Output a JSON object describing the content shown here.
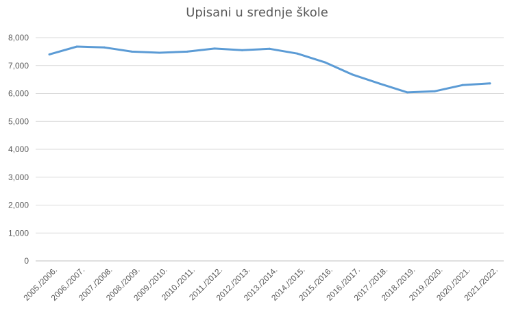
{
  "chart_data": {
    "type": "line",
    "title": "Upisani u srednje škole",
    "xlabel": "",
    "ylabel": "",
    "ylim": [
      0,
      8000
    ],
    "yticks": [
      "0",
      "1,000",
      "2,000",
      "3,000",
      "4,000",
      "5,000",
      "6,000",
      "7,000",
      "8,000"
    ],
    "grid": true,
    "legend": "none",
    "categories": [
      "2005./2006.",
      "2006./2007.",
      "2007./2008.",
      "2008./2009.",
      "2009./2010.",
      "2010./2011.",
      "2011./2012.",
      "2012./2013.",
      "2013./2014.",
      "2014./2015.",
      "2015./2016.",
      "2016./2017.",
      "2017./2018.",
      "2018./2019.",
      "2019./2020.",
      "2020./2021.",
      "2021./2022."
    ],
    "series": [
      {
        "values": [
          7400,
          7680,
          7650,
          7500,
          7460,
          7500,
          7610,
          7550,
          7600,
          7430,
          7120,
          6680,
          6350,
          6040,
          6080,
          6300,
          6360
        ],
        "color": "#5b9bd5"
      }
    ]
  }
}
